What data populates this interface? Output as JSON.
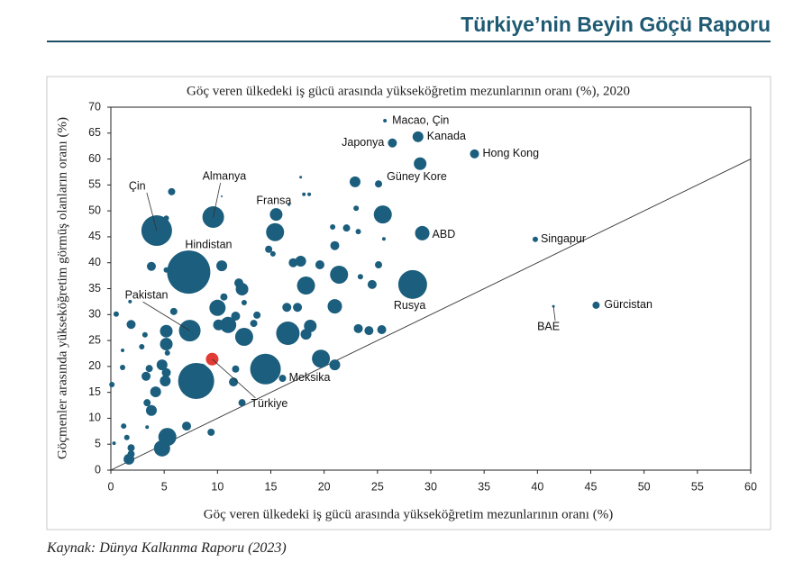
{
  "header": {
    "title": "Türkiye’nin Beyin Göçü Raporu"
  },
  "source": "Kaynak: Dünya Kalkınma Raporu (2023)",
  "chart_data": {
    "type": "scatter",
    "title": "Göç veren ülkedeki iş gücü arasında yükseköğretim mezunlarının oranı (%), 2020",
    "xlabel": "Göç veren ülkedeki iş gücü arasında yükseköğretim mezunlarının oranı (%)",
    "ylabel": "Göçmenler arasında yükseköğretim görmüş olanların oranı (%)",
    "xlim": [
      0,
      60
    ],
    "ylim": [
      0,
      70
    ],
    "xticks": [
      0,
      5,
      10,
      15,
      20,
      25,
      30,
      35,
      40,
      45,
      50,
      55,
      60
    ],
    "yticks": [
      0,
      5,
      10,
      15,
      20,
      25,
      30,
      35,
      40,
      45,
      50,
      55,
      60,
      65,
      70
    ],
    "diagonal": true,
    "series": [
      {
        "color": "#1b5e7d",
        "labels": [
          "Macao, Çin",
          "Kanada",
          "Japonya",
          "Hong Kong",
          "Güney Kore",
          "ABD",
          "Singapur",
          "Gürcistan",
          "BAE",
          "Rusya",
          "Meksika",
          "Pakistan",
          "Hindistan",
          "Çin",
          "Almanya",
          "Fransa",
          null,
          null,
          null,
          null,
          null,
          null,
          null,
          null,
          null,
          null,
          null,
          null,
          null,
          null,
          null,
          null,
          null,
          null,
          null,
          null,
          null,
          null,
          null,
          null,
          null,
          null,
          null,
          null,
          null,
          null,
          null,
          null,
          null,
          null,
          null,
          null,
          null,
          null,
          null,
          null,
          null,
          null,
          null,
          null,
          null,
          null,
          null,
          null,
          null,
          null,
          null,
          null,
          null,
          null,
          null,
          null,
          null,
          null,
          null,
          null,
          null,
          null,
          null,
          null,
          null,
          null,
          null,
          null,
          null,
          null,
          null,
          null,
          null,
          null,
          null,
          null,
          null,
          null,
          null,
          null,
          null,
          null,
          null,
          null,
          null,
          null,
          null,
          null,
          null
        ],
        "x": [
          25.7,
          28.8,
          26.4,
          34.1,
          29.0,
          29.2,
          39.8,
          45.5,
          41.5,
          28.3,
          14.5,
          7.4,
          7.3,
          4.3,
          9.6,
          15.5,
          5.7,
          5.2,
          10.4,
          17.8,
          18.1,
          18.6,
          16.7,
          15.4,
          20.8,
          22.1,
          23.2,
          23.0,
          22.9,
          25.1,
          25.5,
          25.6,
          21.0,
          14.8,
          15.2,
          10.4,
          3.8,
          5.2,
          17.1,
          17.8,
          19.6,
          21.4,
          23.4,
          25.1,
          24.5,
          18.3,
          12.0,
          12.3,
          10.6,
          12.5,
          5.9,
          10.0,
          16.5,
          17.5,
          21.0,
          1.8,
          0.5,
          1.9,
          11.7,
          13.7,
          11.0,
          10.1,
          12.5,
          13.4,
          16.6,
          18.3,
          18.7,
          23.2,
          24.2,
          25.4,
          5.2,
          5.2,
          3.2,
          2.9,
          1.1,
          5.3,
          4.8,
          5.2,
          3.6,
          3.3,
          5.1,
          1.1,
          8.0,
          11.7,
          11.5,
          8.5,
          19.7,
          21.0,
          16.1,
          4.2,
          3.4,
          3.8,
          1.2,
          1.5,
          1.9,
          1.9,
          1.7,
          3.4,
          4.8,
          5.3,
          7.1,
          9.4,
          12.3,
          0.3,
          0.1
        ],
        "y": [
          67.4,
          64.3,
          63.1,
          61.0,
          59.1,
          45.7,
          44.5,
          31.8,
          31.6,
          35.8,
          19.5,
          26.9,
          38.2,
          46.2,
          48.8,
          49.3,
          53.7,
          48.6,
          52.8,
          56.5,
          53.2,
          53.2,
          51.2,
          45.9,
          46.9,
          46.7,
          46.0,
          50.5,
          55.6,
          55.2,
          49.3,
          44.6,
          43.3,
          42.6,
          41.7,
          39.4,
          39.3,
          38.6,
          40.0,
          40.3,
          39.6,
          37.7,
          37.3,
          39.6,
          35.8,
          35.6,
          36.1,
          34.9,
          33.4,
          32.3,
          30.6,
          31.3,
          31.4,
          31.4,
          31.6,
          32.5,
          30.1,
          28.1,
          29.7,
          29.9,
          28.0,
          28.0,
          25.7,
          28.3,
          26.4,
          26.2,
          27.8,
          27.3,
          26.9,
          27.1,
          26.8,
          24.3,
          26.1,
          23.8,
          23.1,
          22.6,
          20.3,
          18.8,
          19.6,
          18.1,
          17.2,
          19.8,
          17.2,
          19.5,
          17.0,
          19.5,
          21.5,
          20.3,
          17.7,
          15.1,
          13.0,
          11.5,
          8.5,
          6.3,
          4.3,
          3.1,
          2.1,
          8.3,
          4.2,
          6.4,
          8.5,
          7.3,
          13.0,
          5.2,
          16.5
        ],
        "sizes": [
          2,
          6,
          5,
          5,
          7,
          8,
          3,
          4,
          1.5,
          16,
          17,
          12,
          24,
          17,
          12,
          7,
          4,
          3,
          1,
          1.5,
          2,
          2,
          1.5,
          10,
          3,
          4,
          3,
          3,
          6,
          4,
          10,
          2,
          5,
          4,
          3,
          6,
          5,
          3,
          5,
          6,
          5,
          10,
          3,
          4,
          5,
          10,
          5,
          7,
          4,
          3,
          4,
          9,
          5,
          5,
          8,
          2,
          3,
          5,
          5,
          4,
          9,
          6,
          10,
          4,
          13,
          6,
          7,
          5,
          5,
          5,
          7,
          7,
          3,
          3,
          2,
          3,
          6,
          5,
          4,
          5,
          6,
          3,
          20,
          4,
          5,
          6,
          10,
          6,
          4,
          6,
          4,
          6,
          3,
          3,
          4,
          4,
          6,
          2,
          9,
          10,
          5,
          4,
          4,
          2,
          3
        ]
      },
      {
        "color": "#e23b36",
        "labels": [
          "Türkiye"
        ],
        "x": [
          9.5
        ],
        "y": [
          21.4
        ],
        "sizes": [
          7
        ]
      }
    ]
  }
}
